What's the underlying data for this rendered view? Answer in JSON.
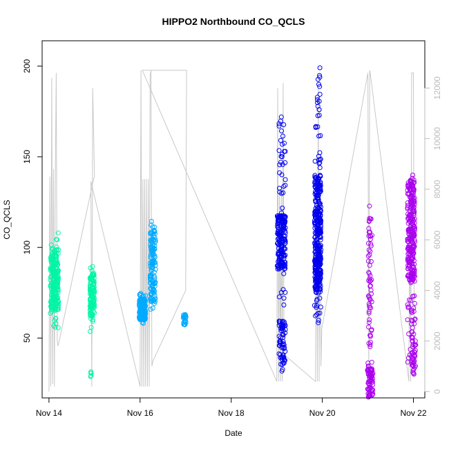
{
  "chart_data": {
    "type": "scatter",
    "title": "HIPPO2 Northbound CO_QCLS",
    "xlabel": "Date",
    "ylabel": "CO_QCLS",
    "x_ticks": [
      "Nov 14",
      "Nov 16",
      "Nov 18",
      "Nov 20",
      "Nov 22"
    ],
    "x_tick_days": [
      14,
      16,
      18,
      20,
      22
    ],
    "xlim": [
      13.85,
      22.25
    ],
    "ylim": [
      17,
      214
    ],
    "y_ticks": [
      50,
      100,
      150,
      200
    ],
    "y2_ticks": [
      0,
      2000,
      4000,
      6000,
      8000,
      10000,
      12000
    ],
    "y2lim": [
      -250,
      13870
    ],
    "y2_color": "#bbbbbb",
    "grid": false,
    "series": [
      {
        "color": "#00f5a5",
        "clusters": [
          {
            "day": 14.12,
            "spread": 0.09,
            "ymin": 55,
            "ymax": 110,
            "core": [
              65,
              97
            ],
            "n": 230
          },
          {
            "day": 14.95,
            "spread": 0.05,
            "ymin": 53,
            "ymax": 91,
            "core": [
              62,
              86
            ],
            "n": 130
          },
          {
            "day": 14.92,
            "spread": 0.01,
            "ymin": 27,
            "ymax": 32,
            "core": [
              27,
              32
            ],
            "n": 5
          }
        ]
      },
      {
        "color": "#00aaff",
        "clusters": [
          {
            "day": 16.05,
            "spread": 0.07,
            "ymin": 58,
            "ymax": 75,
            "core": [
              60,
              72
            ],
            "n": 170
          },
          {
            "day": 16.28,
            "spread": 0.06,
            "ymin": 65,
            "ymax": 115,
            "core": [
              70,
              110
            ],
            "n": 140
          },
          {
            "day": 16.98,
            "spread": 0.03,
            "ymin": 57,
            "ymax": 66,
            "core": [
              57,
              63
            ],
            "n": 25
          }
        ]
      },
      {
        "color": "#0000ee",
        "clusters": [
          {
            "day": 19.1,
            "spread": 0.09,
            "ymin": 85,
            "ymax": 120,
            "core": [
              88,
              118
            ],
            "n": 170
          },
          {
            "day": 19.12,
            "spread": 0.07,
            "ymin": 27,
            "ymax": 80,
            "core": [
              35,
              60
            ],
            "n": 70
          },
          {
            "day": 19.12,
            "spread": 0.07,
            "ymin": 120,
            "ymax": 177,
            "core": [
              130,
              170
            ],
            "n": 30
          },
          {
            "day": 19.9,
            "spread": 0.07,
            "ymin": 57,
            "ymax": 167,
            "core": [
              75,
              140
            ],
            "n": 360
          },
          {
            "day": 19.92,
            "spread": 0.03,
            "ymin": 168,
            "ymax": 211,
            "core": [
              170,
              205
            ],
            "n": 16
          }
        ]
      },
      {
        "color": "#aa00ee",
        "clusters": [
          {
            "day": 21.05,
            "spread": 0.06,
            "ymin": 17,
            "ymax": 38,
            "core": [
              18,
              35
            ],
            "n": 70
          },
          {
            "day": 21.05,
            "spread": 0.04,
            "ymin": 38,
            "ymax": 124,
            "core": [
              45,
              120
            ],
            "n": 60
          },
          {
            "day": 21.95,
            "spread": 0.08,
            "ymin": 30,
            "ymax": 145,
            "core": [
              80,
              138
            ],
            "n": 290
          },
          {
            "day": 22.0,
            "spread": 0.05,
            "ymin": 30,
            "ymax": 70,
            "core": [
              30,
              60
            ],
            "n": 40
          }
        ]
      }
    ],
    "altitude_trace": {
      "color": "#c8c8c8",
      "points": [
        [
          14.0,
          0
        ],
        [
          14.02,
          8500
        ],
        [
          14.04,
          200
        ],
        [
          14.06,
          12400
        ],
        [
          14.08,
          300
        ],
        [
          14.1,
          8800
        ],
        [
          14.12,
          200
        ],
        [
          14.14,
          8600
        ],
        [
          14.16,
          12600
        ],
        [
          14.18,
          2000
        ],
        [
          14.2,
          1800
        ],
        [
          14.98,
          8400
        ],
        [
          15.0,
          8500
        ],
        [
          14.96,
          12000
        ],
        [
          14.94,
          200
        ],
        [
          14.92,
          8300
        ],
        [
          16.0,
          200
        ],
        [
          16.02,
          12700
        ],
        [
          16.04,
          200
        ],
        [
          16.06,
          8400
        ],
        [
          16.08,
          200
        ],
        [
          16.1,
          8400
        ],
        [
          16.12,
          200
        ],
        [
          16.14,
          8400
        ],
        [
          16.16,
          200
        ],
        [
          16.18,
          8400
        ],
        [
          16.2,
          200
        ],
        [
          16.22,
          12500
        ],
        [
          16.24,
          12700
        ],
        [
          16.26,
          1000
        ],
        [
          16.28,
          1200
        ],
        [
          17.0,
          4000
        ],
        [
          17.02,
          12700
        ],
        [
          16.05,
          12700
        ],
        [
          19.0,
          400
        ],
        [
          19.02,
          12000
        ],
        [
          19.04,
          400
        ],
        [
          19.06,
          8000
        ],
        [
          19.08,
          400
        ],
        [
          19.1,
          8000
        ],
        [
          19.12,
          400
        ],
        [
          19.14,
          12200
        ],
        [
          19.16,
          1000
        ],
        [
          19.2,
          1400
        ],
        [
          19.85,
          400
        ],
        [
          19.87,
          8500
        ],
        [
          19.89,
          400
        ],
        [
          19.91,
          12000
        ],
        [
          19.93,
          400
        ],
        [
          19.95,
          8500
        ],
        [
          19.97,
          1000
        ],
        [
          19.99,
          2500
        ],
        [
          21.0,
          12600
        ],
        [
          21.02,
          400
        ],
        [
          21.04,
          12700
        ],
        [
          21.05,
          12600
        ],
        [
          21.9,
          400
        ],
        [
          21.92,
          8000
        ],
        [
          21.94,
          400
        ],
        [
          21.96,
          12600
        ],
        [
          22.0,
          12600
        ],
        [
          22.02,
          600
        ]
      ]
    }
  }
}
